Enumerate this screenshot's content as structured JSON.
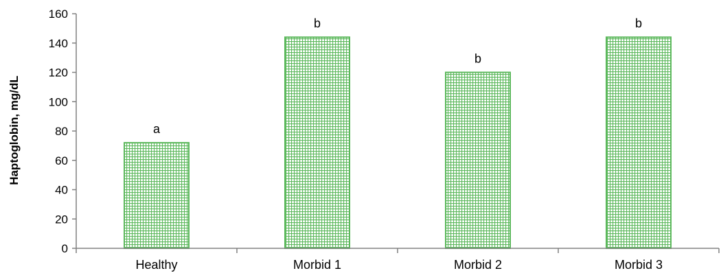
{
  "chart_data": {
    "type": "bar",
    "title": "",
    "xlabel": "",
    "ylabel": "Haptoglobin, mg/dL",
    "ylim": [
      0,
      160
    ],
    "yticks": [
      0,
      20,
      40,
      60,
      80,
      100,
      120,
      140,
      160
    ],
    "grid": false,
    "categories": [
      "Healthy",
      "Morbid 1",
      "Morbid 2",
      "Morbid 3"
    ],
    "values": [
      72,
      144,
      120,
      144
    ],
    "significance_labels": [
      "a",
      "b",
      "b",
      "b"
    ],
    "colors": {
      "bar_stroke": "#5cb85c",
      "bar_pattern": "#5cb85c",
      "axis": "#808080"
    }
  }
}
